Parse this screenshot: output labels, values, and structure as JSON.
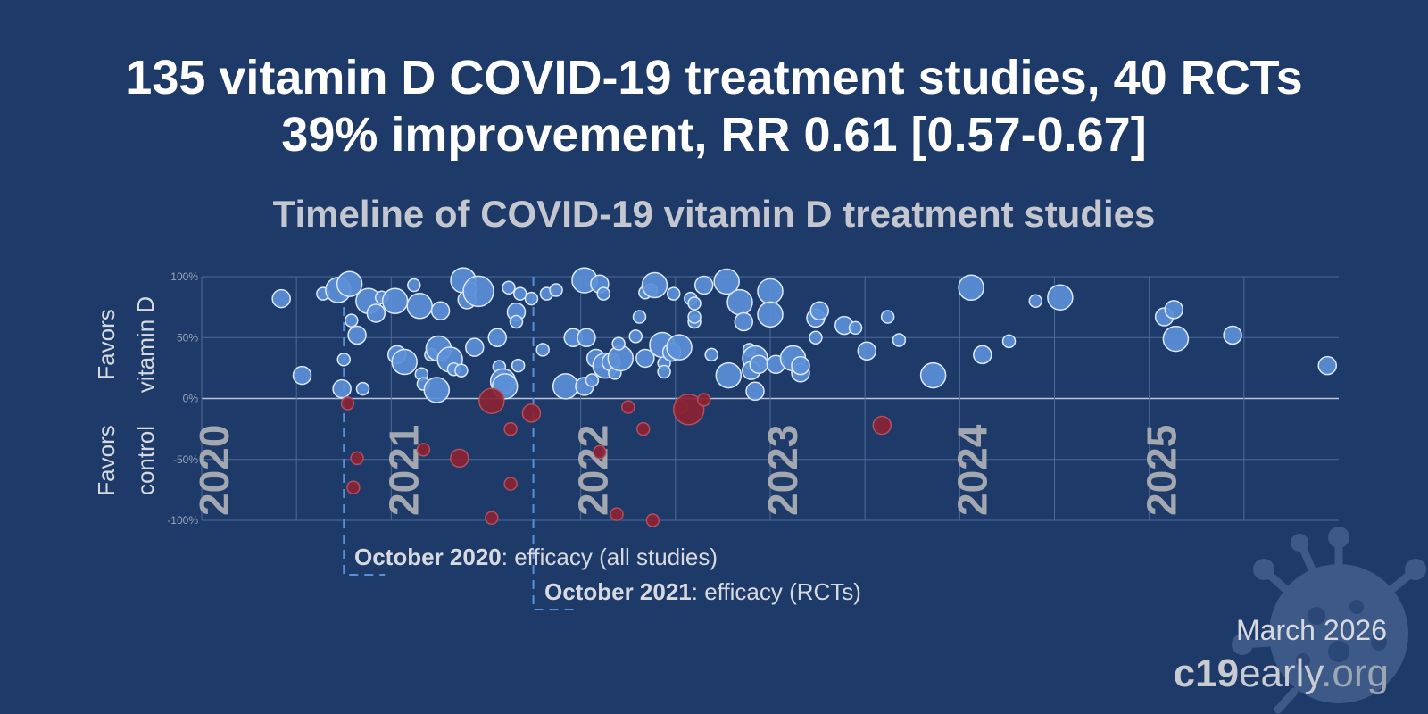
{
  "header": {
    "line1": "135 vitamin D COVID-19 treatment studies, 40 RCTs",
    "line2": "39% improvement, RR 0.61 [0.57-0.67]"
  },
  "footer": {
    "date": "March 2026",
    "brand_bold": "c19",
    "brand_mid": "early",
    "brand_tail": ".org"
  },
  "annotations": [
    {
      "bold": "October 2020",
      "text": ": efficacy (all studies)",
      "date": 2020.75
    },
    {
      "bold": "October 2021",
      "text": ": efficacy (RCTs)",
      "date": 2021.75
    }
  ],
  "colors": {
    "background": "#1e3a68",
    "favors_treatment": "#5b8fd8",
    "favors_control": "#8a2333",
    "grid": "#4d6a99",
    "annotation_line": "#5b8fd8"
  },
  "chart_data": {
    "type": "scatter",
    "title": "Timeline of COVID-19 vitamin D treatment studies",
    "xlabel": "",
    "ylabel_top": [
      "Favors",
      "vitamin D"
    ],
    "ylabel_bottom": [
      "Favors",
      "control"
    ],
    "xlim": [
      2020,
      2026
    ],
    "ylim": [
      -100,
      100
    ],
    "year_labels": [
      "2020",
      "2021",
      "2022",
      "2023",
      "2024",
      "2025"
    ],
    "y_ticks": [
      {
        "value": 100,
        "label": "100%"
      },
      {
        "value": 50,
        "label": "50%"
      },
      {
        "value": 0,
        "label": "0%"
      },
      {
        "value": -50,
        "label": "-50%"
      },
      {
        "value": -100,
        "label": "-100%"
      }
    ],
    "points": [
      {
        "x": 2020.42,
        "y": 82,
        "s": 2
      },
      {
        "x": 2020.53,
        "y": 19,
        "s": 2
      },
      {
        "x": 2020.64,
        "y": 86,
        "s": 1
      },
      {
        "x": 2020.72,
        "y": 89,
        "s": 3
      },
      {
        "x": 2020.78,
        "y": 94,
        "s": 3
      },
      {
        "x": 2020.75,
        "y": 32,
        "s": 1
      },
      {
        "x": 2020.79,
        "y": 64,
        "s": 1
      },
      {
        "x": 2020.82,
        "y": 52,
        "s": 2
      },
      {
        "x": 2020.74,
        "y": 8,
        "s": 2
      },
      {
        "x": 2020.85,
        "y": 8,
        "s": 1
      },
      {
        "x": 2020.88,
        "y": 80,
        "s": 3
      },
      {
        "x": 2020.92,
        "y": 70,
        "s": 2
      },
      {
        "x": 2020.95,
        "y": 83,
        "s": 1
      },
      {
        "x": 2021.02,
        "y": 80,
        "s": 3
      },
      {
        "x": 2021.03,
        "y": 36,
        "s": 2
      },
      {
        "x": 2021.07,
        "y": 30,
        "s": 3
      },
      {
        "x": 2021.12,
        "y": 93,
        "s": 1
      },
      {
        "x": 2021.15,
        "y": 76,
        "s": 3
      },
      {
        "x": 2021.16,
        "y": 20,
        "s": 1
      },
      {
        "x": 2021.17,
        "y": 12,
        "s": 1
      },
      {
        "x": 2021.21,
        "y": 36,
        "s": 1
      },
      {
        "x": 2021.25,
        "y": 41,
        "s": 3
      },
      {
        "x": 2021.26,
        "y": 72,
        "s": 2
      },
      {
        "x": 2021.24,
        "y": 7,
        "s": 3
      },
      {
        "x": 2021.31,
        "y": 32,
        "s": 3
      },
      {
        "x": 2021.33,
        "y": 24,
        "s": 1
      },
      {
        "x": 2021.37,
        "y": 23,
        "s": 1
      },
      {
        "x": 2021.38,
        "y": 97,
        "s": 3
      },
      {
        "x": 2021.4,
        "y": 81,
        "s": 2
      },
      {
        "x": 2021.42,
        "y": 90,
        "s": 1
      },
      {
        "x": 2021.44,
        "y": 42,
        "s": 2
      },
      {
        "x": 2021.46,
        "y": 88,
        "s": 4
      },
      {
        "x": 2021.56,
        "y": 50,
        "s": 2
      },
      {
        "x": 2021.57,
        "y": 26,
        "s": 1
      },
      {
        "x": 2021.59,
        "y": 14,
        "s": 3
      },
      {
        "x": 2021.6,
        "y": 10,
        "s": 3
      },
      {
        "x": 2021.62,
        "y": 91,
        "s": 1
      },
      {
        "x": 2021.66,
        "y": 71,
        "s": 2
      },
      {
        "x": 2021.66,
        "y": 63,
        "s": 1
      },
      {
        "x": 2021.67,
        "y": 27,
        "s": 1
      },
      {
        "x": 2021.68,
        "y": 86,
        "s": 1
      },
      {
        "x": 2021.74,
        "y": 82,
        "s": 1
      },
      {
        "x": 2021.8,
        "y": 40,
        "s": 1
      },
      {
        "x": 2021.82,
        "y": 86,
        "s": 1
      },
      {
        "x": 2021.87,
        "y": 89,
        "s": 1
      },
      {
        "x": 2021.92,
        "y": 10,
        "s": 3
      },
      {
        "x": 2021.96,
        "y": 50,
        "s": 2
      },
      {
        "x": 2022.02,
        "y": 97,
        "s": 3
      },
      {
        "x": 2022.03,
        "y": 50,
        "s": 2
      },
      {
        "x": 2022.02,
        "y": 10,
        "s": 2
      },
      {
        "x": 2022.06,
        "y": 15,
        "s": 1
      },
      {
        "x": 2022.08,
        "y": 33,
        "s": 2
      },
      {
        "x": 2022.1,
        "y": 94,
        "s": 2
      },
      {
        "x": 2022.12,
        "y": 86,
        "s": 1
      },
      {
        "x": 2022.13,
        "y": 27,
        "s": 3
      },
      {
        "x": 2022.16,
        "y": 30,
        "s": 2
      },
      {
        "x": 2022.18,
        "y": 21,
        "s": 1
      },
      {
        "x": 2022.21,
        "y": 33,
        "s": 3
      },
      {
        "x": 2022.2,
        "y": 45,
        "s": 1
      },
      {
        "x": 2022.29,
        "y": 51,
        "s": 1
      },
      {
        "x": 2022.31,
        "y": 67,
        "s": 1
      },
      {
        "x": 2022.34,
        "y": 87,
        "s": 1
      },
      {
        "x": 2022.37,
        "y": 89,
        "s": 1
      },
      {
        "x": 2022.39,
        "y": 93,
        "s": 3
      },
      {
        "x": 2022.34,
        "y": 33,
        "s": 2
      },
      {
        "x": 2022.43,
        "y": 44,
        "s": 3
      },
      {
        "x": 2022.44,
        "y": 29,
        "s": 1
      },
      {
        "x": 2022.44,
        "y": 22,
        "s": 1
      },
      {
        "x": 2022.48,
        "y": 38,
        "s": 2
      },
      {
        "x": 2022.52,
        "y": 42,
        "s": 3
      },
      {
        "x": 2022.49,
        "y": 86,
        "s": 1
      },
      {
        "x": 2022.58,
        "y": 82,
        "s": 1
      },
      {
        "x": 2022.6,
        "y": 78,
        "s": 1
      },
      {
        "x": 2022.6,
        "y": 63,
        "s": 1
      },
      {
        "x": 2022.6,
        "y": 67,
        "s": 1
      },
      {
        "x": 2022.65,
        "y": 93,
        "s": 2
      },
      {
        "x": 2022.69,
        "y": 36,
        "s": 1
      },
      {
        "x": 2022.77,
        "y": 96,
        "s": 3
      },
      {
        "x": 2022.84,
        "y": 79,
        "s": 3
      },
      {
        "x": 2022.78,
        "y": 19,
        "s": 3
      },
      {
        "x": 2022.86,
        "y": 63,
        "s": 2
      },
      {
        "x": 2022.89,
        "y": 40,
        "s": 1
      },
      {
        "x": 2022.92,
        "y": 33,
        "s": 3
      },
      {
        "x": 2022.9,
        "y": 23,
        "s": 2
      },
      {
        "x": 2022.92,
        "y": 6,
        "s": 2
      },
      {
        "x": 2022.94,
        "y": 28,
        "s": 2
      },
      {
        "x": 2023.0,
        "y": 88,
        "s": 3
      },
      {
        "x": 2023.0,
        "y": 69,
        "s": 3
      },
      {
        "x": 2023.03,
        "y": 28,
        "s": 2
      },
      {
        "x": 2023.12,
        "y": 33,
        "s": 3
      },
      {
        "x": 2023.16,
        "y": 21,
        "s": 2
      },
      {
        "x": 2023.16,
        "y": 27,
        "s": 2
      },
      {
        "x": 2023.24,
        "y": 66,
        "s": 2
      },
      {
        "x": 2023.26,
        "y": 72,
        "s": 2
      },
      {
        "x": 2023.24,
        "y": 50,
        "s": 1
      },
      {
        "x": 2023.39,
        "y": 60,
        "s": 2
      },
      {
        "x": 2023.45,
        "y": 58,
        "s": 1
      },
      {
        "x": 2023.51,
        "y": 39,
        "s": 2
      },
      {
        "x": 2023.62,
        "y": 67,
        "s": 1
      },
      {
        "x": 2023.68,
        "y": 48,
        "s": 1
      },
      {
        "x": 2023.86,
        "y": 19,
        "s": 3
      },
      {
        "x": 2024.06,
        "y": 91,
        "s": 3
      },
      {
        "x": 2024.12,
        "y": 36,
        "s": 2
      },
      {
        "x": 2024.26,
        "y": 47,
        "s": 1
      },
      {
        "x": 2024.4,
        "y": 80,
        "s": 1
      },
      {
        "x": 2024.53,
        "y": 83,
        "s": 3
      },
      {
        "x": 2025.08,
        "y": 67,
        "s": 2
      },
      {
        "x": 2025.13,
        "y": 73,
        "s": 2
      },
      {
        "x": 2025.14,
        "y": 49,
        "s": 3
      },
      {
        "x": 2025.44,
        "y": 52,
        "s": 2
      },
      {
        "x": 2025.94,
        "y": 27,
        "s": 2
      },
      {
        "x": 2020.77,
        "y": -4,
        "s": 1
      },
      {
        "x": 2020.82,
        "y": -49,
        "s": 1
      },
      {
        "x": 2020.8,
        "y": -73,
        "s": 1
      },
      {
        "x": 2021.17,
        "y": -42,
        "s": 1
      },
      {
        "x": 2021.36,
        "y": -49,
        "s": 2
      },
      {
        "x": 2021.53,
        "y": -98,
        "s": 1
      },
      {
        "x": 2021.53,
        "y": -2,
        "s": 3
      },
      {
        "x": 2021.63,
        "y": -25,
        "s": 1
      },
      {
        "x": 2021.63,
        "y": -70,
        "s": 1
      },
      {
        "x": 2021.74,
        "y": -12,
        "s": 2
      },
      {
        "x": 2022.1,
        "y": -44,
        "s": 1
      },
      {
        "x": 2022.19,
        "y": -95,
        "s": 1
      },
      {
        "x": 2022.25,
        "y": -7,
        "s": 1
      },
      {
        "x": 2022.33,
        "y": -25,
        "s": 1
      },
      {
        "x": 2022.38,
        "y": -100,
        "s": 1
      },
      {
        "x": 2022.53,
        "y": -7,
        "s": 1
      },
      {
        "x": 2022.57,
        "y": -9,
        "s": 4
      },
      {
        "x": 2022.65,
        "y": -1,
        "s": 1
      },
      {
        "x": 2023.59,
        "y": -22,
        "s": 2
      }
    ]
  }
}
